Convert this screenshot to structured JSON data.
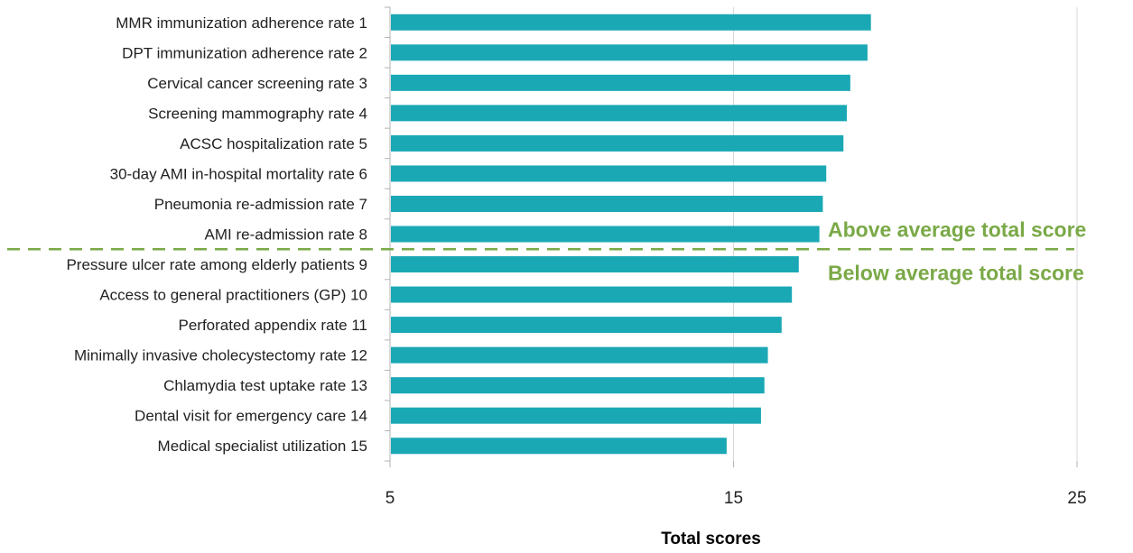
{
  "chart_data": {
    "type": "bar",
    "orientation": "horizontal",
    "categories": [
      "MMR immunization adherence rate 1",
      "DPT immunization adherence rate 2",
      "Cervical cancer screening rate 3",
      "Screening mammography rate 4",
      "ACSC hospitalization rate 5",
      "30-day AMI in-hospital mortality rate 6",
      "Pneumonia re-admission rate 7",
      "AMI re-admission rate 8",
      "Pressure ulcer rate among elderly patients 9",
      "Access to general practitioners (GP) 10",
      "Perforated appendix rate 11",
      "Minimally invasive cholecystectomy rate 12",
      "Chlamydia test uptake rate 13",
      "Dental visit for emergency care 14",
      "Medical specialist utilization 15"
    ],
    "values": [
      19.0,
      18.9,
      18.4,
      18.3,
      18.2,
      17.7,
      17.6,
      17.5,
      16.9,
      16.7,
      16.4,
      16.0,
      15.9,
      15.8,
      14.8
    ],
    "xlabel": "Total scores",
    "ylabel": "",
    "xlim": [
      5,
      25
    ],
    "xticks": [
      5,
      15,
      25
    ],
    "grid": true,
    "colors": {
      "bar": "#1aa8b5",
      "annotation": "#7aa947",
      "grid": "#d9d9d9",
      "axis": "#b3b3b3"
    },
    "annotations": {
      "divider_after_index": 7,
      "above_label": "Above average total score",
      "below_label": "Below average total score"
    }
  }
}
